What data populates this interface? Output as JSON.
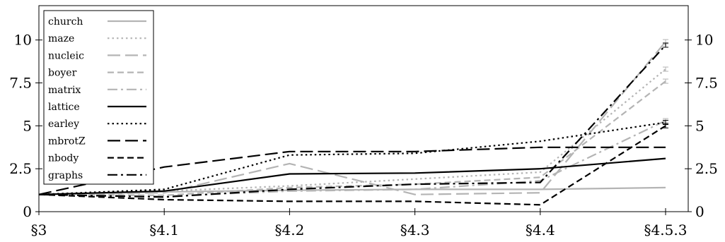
{
  "chart_data": {
    "type": "line",
    "categories": [
      "§3",
      "§4.1",
      "§4.2",
      "§4.3",
      "§4.4",
      "§4.5.3"
    ],
    "ylim": [
      0,
      12
    ],
    "yticks": [
      0,
      2.5,
      5,
      7.5,
      10
    ],
    "ytick_labels": [
      "0",
      "2.5",
      "5",
      "7.5",
      "10"
    ],
    "legend_position": "top-left",
    "grid": false,
    "series": [
      {
        "name": "church",
        "color": "#b4b4b4",
        "dash": "solid",
        "width": 2.2,
        "values": [
          1.0,
          1.15,
          1.25,
          1.3,
          1.3,
          1.4
        ]
      },
      {
        "name": "maze",
        "color": "#b4b4b4",
        "dash": "dotted",
        "width": 2.2,
        "values": [
          1.0,
          1.2,
          1.5,
          1.9,
          2.3,
          8.3
        ]
      },
      {
        "name": "nucleic",
        "color": "#b4b4b4",
        "dash": "longdash",
        "width": 2.2,
        "values": [
          1.0,
          1.1,
          2.8,
          1.0,
          1.1,
          9.9
        ]
      },
      {
        "name": "boyer",
        "color": "#b4b4b4",
        "dash": "dashed",
        "width": 2.2,
        "values": [
          1.0,
          0.95,
          1.4,
          1.6,
          2.0,
          7.6
        ]
      },
      {
        "name": "matrix",
        "color": "#b4b4b4",
        "dash": "dashdot",
        "width": 2.2,
        "values": [
          1.0,
          0.9,
          1.2,
          1.3,
          1.8,
          5.3
        ]
      },
      {
        "name": "lattice",
        "color": "#000000",
        "dash": "solid",
        "width": 2.2,
        "values": [
          1.0,
          1.2,
          2.2,
          2.25,
          2.5,
          3.1
        ]
      },
      {
        "name": "earley",
        "color": "#000000",
        "dash": "dotted",
        "width": 2.2,
        "values": [
          1.0,
          1.3,
          3.3,
          3.4,
          4.1,
          5.2
        ]
      },
      {
        "name": "mbrotZ",
        "color": "#000000",
        "dash": "longdash",
        "width": 2.2,
        "values": [
          1.0,
          2.6,
          3.5,
          3.5,
          3.75,
          3.75
        ]
      },
      {
        "name": "nbody",
        "color": "#000000",
        "dash": "dashed",
        "width": 2.2,
        "values": [
          1.0,
          0.7,
          0.6,
          0.6,
          0.4,
          5.0
        ]
      },
      {
        "name": "graphs",
        "color": "#000000",
        "dash": "dashdot",
        "width": 2.2,
        "values": [
          1.0,
          0.85,
          1.3,
          1.6,
          1.7,
          9.7
        ]
      }
    ]
  }
}
